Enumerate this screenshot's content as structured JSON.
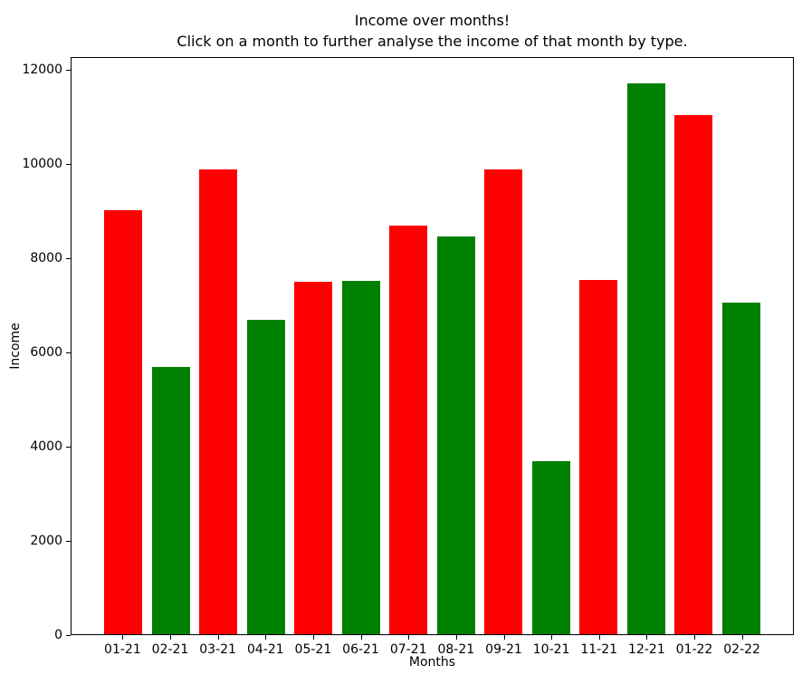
{
  "figure": {
    "background": "#ffffff",
    "border_color": "#000000"
  },
  "chart_data": {
    "type": "bar",
    "title": "Income over months!\nClick on a month to further analyse the income of that month by type.",
    "xlabel": "Months",
    "ylabel": "Income",
    "categories": [
      "01-21",
      "02-21",
      "03-21",
      "04-21",
      "05-21",
      "06-21",
      "07-21",
      "08-21",
      "09-21",
      "10-21",
      "11-21",
      "12-21",
      "01-22",
      "02-22"
    ],
    "values": [
      9030,
      5700,
      9900,
      6700,
      7500,
      7530,
      8710,
      8470,
      9900,
      3680,
      7550,
      11730,
      11050,
      7060
    ],
    "bar_colors": [
      "#ff0000",
      "#008000",
      "#ff0000",
      "#008000",
      "#ff0000",
      "#008000",
      "#ff0000",
      "#008000",
      "#ff0000",
      "#008000",
      "#ff0000",
      "#008000",
      "#ff0000",
      "#008000"
    ],
    "yticks": [
      0,
      2000,
      4000,
      6000,
      8000,
      10000,
      12000
    ],
    "ylim": [
      0,
      12270
    ],
    "bar_width_fraction": 0.8,
    "grid": false,
    "legend_visible": false
  }
}
